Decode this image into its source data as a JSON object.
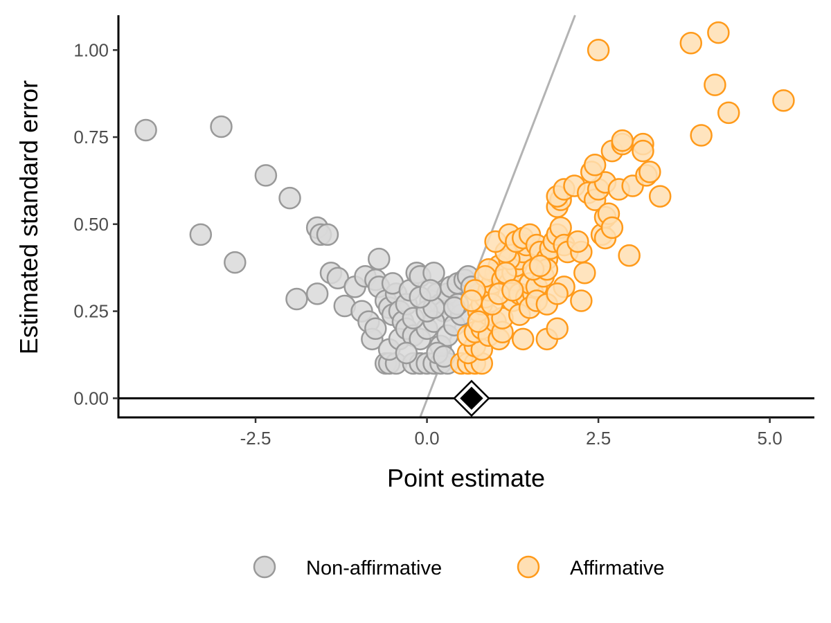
{
  "chart_data": {
    "type": "scatter",
    "title": "",
    "xlabel": "Point estimate",
    "ylabel": "Estimated standard error",
    "xlim": [
      -4.5,
      5.65
    ],
    "ylim": [
      -0.055,
      1.1
    ],
    "x_ticks": [
      {
        "value": -2.5,
        "label": "-2.5"
      },
      {
        "value": 0.0,
        "label": "0.0"
      },
      {
        "value": 2.5,
        "label": "2.5"
      },
      {
        "value": 5.0,
        "label": "5.0"
      }
    ],
    "y_ticks": [
      {
        "value": 0.0,
        "label": "0.00"
      },
      {
        "value": 0.25,
        "label": "0.25"
      },
      {
        "value": 0.5,
        "label": "0.50"
      },
      {
        "value": 0.75,
        "label": "0.75"
      },
      {
        "value": 1.0,
        "label": "1.00"
      }
    ],
    "grid": false,
    "legend_position": "bottom",
    "series": [
      {
        "name": "Non-affirmative",
        "fill": "#d9d9d9",
        "stroke": "#999999",
        "points": [
          [
            -4.1,
            0.77
          ],
          [
            -3.0,
            0.78
          ],
          [
            -3.3,
            0.47
          ],
          [
            -2.8,
            0.39
          ],
          [
            -2.35,
            0.64
          ],
          [
            -2.0,
            0.575
          ],
          [
            -1.6,
            0.49
          ],
          [
            -1.55,
            0.47
          ],
          [
            -1.45,
            0.47
          ],
          [
            -1.6,
            0.3
          ],
          [
            -1.9,
            0.285
          ],
          [
            -1.4,
            0.36
          ],
          [
            -1.3,
            0.345
          ],
          [
            -1.2,
            0.265
          ],
          [
            -1.05,
            0.32
          ],
          [
            -0.9,
            0.35
          ],
          [
            -0.75,
            0.34
          ],
          [
            -0.7,
            0.32
          ],
          [
            -0.7,
            0.4
          ],
          [
            -0.95,
            0.25
          ],
          [
            -0.85,
            0.22
          ],
          [
            -0.8,
            0.17
          ],
          [
            -0.75,
            0.2
          ],
          [
            -0.6,
            0.28
          ],
          [
            -0.55,
            0.26
          ],
          [
            -0.5,
            0.24
          ],
          [
            -0.45,
            0.3
          ],
          [
            -0.5,
            0.33
          ],
          [
            -0.4,
            0.25
          ],
          [
            -0.35,
            0.22
          ],
          [
            -0.3,
            0.27
          ],
          [
            -0.25,
            0.31
          ],
          [
            -0.15,
            0.36
          ],
          [
            -0.1,
            0.35
          ],
          [
            0.1,
            0.36
          ],
          [
            0.05,
            0.28
          ],
          [
            0.15,
            0.3
          ],
          [
            0.2,
            0.27
          ],
          [
            0.25,
            0.25
          ],
          [
            0.3,
            0.3
          ],
          [
            0.35,
            0.32
          ],
          [
            0.45,
            0.33
          ],
          [
            0.55,
            0.34
          ],
          [
            0.6,
            0.35
          ],
          [
            0.65,
            0.32
          ],
          [
            -0.6,
            0.1
          ],
          [
            -0.55,
            0.1
          ],
          [
            -0.45,
            0.1
          ],
          [
            -0.2,
            0.1
          ],
          [
            -0.1,
            0.1
          ],
          [
            0.0,
            0.1
          ],
          [
            0.1,
            0.1
          ],
          [
            0.2,
            0.1
          ],
          [
            0.3,
            0.1
          ],
          [
            -0.55,
            0.14
          ],
          [
            -0.4,
            0.17
          ],
          [
            -0.3,
            0.2
          ],
          [
            -0.2,
            0.18
          ],
          [
            -0.1,
            0.17
          ],
          [
            0.0,
            0.2
          ],
          [
            0.1,
            0.22
          ],
          [
            0.2,
            0.15
          ],
          [
            0.3,
            0.18
          ],
          [
            0.4,
            0.21
          ],
          [
            0.5,
            0.24
          ],
          [
            -0.2,
            0.23
          ],
          [
            0.0,
            0.25
          ],
          [
            0.1,
            0.26
          ],
          [
            -0.1,
            0.29
          ],
          [
            0.05,
            0.31
          ],
          [
            0.15,
            0.13
          ],
          [
            0.25,
            0.12
          ],
          [
            -0.3,
            0.13
          ],
          [
            0.45,
            0.27
          ],
          [
            0.4,
            0.26
          ]
        ]
      },
      {
        "name": "Affirmative",
        "fill": "#ffdfb3",
        "stroke": "#ff9a1a",
        "points": [
          [
            0.5,
            0.1
          ],
          [
            0.6,
            0.1
          ],
          [
            0.7,
            0.1
          ],
          [
            0.8,
            0.1
          ],
          [
            0.6,
            0.13
          ],
          [
            0.7,
            0.15
          ],
          [
            0.8,
            0.14
          ],
          [
            0.6,
            0.18
          ],
          [
            0.7,
            0.19
          ],
          [
            0.8,
            0.2
          ],
          [
            0.9,
            0.18
          ],
          [
            0.9,
            0.24
          ],
          [
            1.0,
            0.22
          ],
          [
            1.05,
            0.17
          ],
          [
            1.1,
            0.19
          ],
          [
            1.1,
            0.23
          ],
          [
            0.75,
            0.25
          ],
          [
            0.8,
            0.27
          ],
          [
            0.85,
            0.29
          ],
          [
            0.9,
            0.31
          ],
          [
            0.95,
            0.33
          ],
          [
            1.0,
            0.36
          ],
          [
            1.05,
            0.38
          ],
          [
            0.9,
            0.37
          ],
          [
            0.85,
            0.35
          ],
          [
            1.1,
            0.34
          ],
          [
            1.2,
            0.33
          ],
          [
            1.25,
            0.36
          ],
          [
            1.3,
            0.38
          ],
          [
            1.35,
            0.4
          ],
          [
            1.4,
            0.42
          ],
          [
            1.45,
            0.44
          ],
          [
            1.2,
            0.4
          ],
          [
            1.15,
            0.42
          ],
          [
            1.0,
            0.45
          ],
          [
            1.2,
            0.47
          ],
          [
            1.3,
            0.45
          ],
          [
            1.4,
            0.46
          ],
          [
            1.5,
            0.47
          ],
          [
            1.6,
            0.44
          ],
          [
            1.65,
            0.42
          ],
          [
            1.75,
            0.4
          ],
          [
            1.8,
            0.43
          ],
          [
            1.85,
            0.45
          ],
          [
            1.9,
            0.47
          ],
          [
            1.95,
            0.49
          ],
          [
            2.0,
            0.44
          ],
          [
            2.05,
            0.42
          ],
          [
            1.25,
            0.28
          ],
          [
            1.35,
            0.3
          ],
          [
            1.45,
            0.29
          ],
          [
            1.55,
            0.3
          ],
          [
            1.5,
            0.33
          ],
          [
            1.6,
            0.32
          ],
          [
            1.7,
            0.35
          ],
          [
            1.75,
            0.37
          ],
          [
            1.35,
            0.24
          ],
          [
            1.5,
            0.26
          ],
          [
            1.6,
            0.28
          ],
          [
            1.75,
            0.27
          ],
          [
            1.4,
            0.17
          ],
          [
            1.75,
            0.17
          ],
          [
            1.9,
            0.2
          ],
          [
            2.0,
            0.32
          ],
          [
            1.9,
            0.3
          ],
          [
            2.25,
            0.28
          ],
          [
            2.3,
            0.36
          ],
          [
            2.25,
            0.42
          ],
          [
            2.2,
            0.45
          ],
          [
            1.9,
            0.55
          ],
          [
            1.95,
            0.57
          ],
          [
            1.9,
            0.58
          ],
          [
            2.0,
            0.6
          ],
          [
            2.15,
            0.61
          ],
          [
            2.35,
            0.59
          ],
          [
            2.45,
            0.57
          ],
          [
            2.5,
            0.6
          ],
          [
            2.6,
            0.62
          ],
          [
            2.55,
            0.47
          ],
          [
            2.6,
            0.46
          ],
          [
            2.6,
            0.52
          ],
          [
            2.65,
            0.53
          ],
          [
            2.7,
            0.49
          ],
          [
            2.95,
            0.41
          ],
          [
            2.8,
            0.6
          ],
          [
            3.0,
            0.61
          ],
          [
            2.4,
            0.65
          ],
          [
            2.45,
            0.67
          ],
          [
            2.7,
            0.71
          ],
          [
            2.85,
            0.73
          ],
          [
            2.85,
            0.74
          ],
          [
            3.15,
            0.73
          ],
          [
            3.15,
            0.71
          ],
          [
            3.2,
            0.64
          ],
          [
            3.25,
            0.65
          ],
          [
            3.4,
            0.58
          ],
          [
            2.5,
            1.0
          ],
          [
            3.85,
            1.02
          ],
          [
            4.25,
            1.05
          ],
          [
            4.2,
            0.9
          ],
          [
            4.4,
            0.82
          ],
          [
            4.0,
            0.755
          ],
          [
            5.2,
            0.855
          ],
          [
            0.7,
            0.31
          ],
          [
            0.65,
            0.28
          ],
          [
            0.75,
            0.22
          ],
          [
            0.95,
            0.27
          ],
          [
            1.05,
            0.3
          ],
          [
            1.15,
            0.36
          ],
          [
            1.25,
            0.31
          ],
          [
            1.55,
            0.37
          ],
          [
            1.65,
            0.38
          ]
        ]
      }
    ],
    "reference_line": {
      "color": "#b3b3b3",
      "points": [
        [
          -0.1,
          -0.055
        ],
        [
          2.16,
          1.1
        ]
      ]
    },
    "pooled_estimate": {
      "x": 0.65,
      "y": 0.0,
      "shape": "diamond",
      "fill": "#000000",
      "stroke": "#000000"
    },
    "legend": {
      "items": [
        {
          "label": "Non-affirmative",
          "fill": "#d9d9d9",
          "stroke": "#999999"
        },
        {
          "label": "Affirmative",
          "fill": "#ffdfb3",
          "stroke": "#ff9a1a"
        }
      ]
    }
  }
}
